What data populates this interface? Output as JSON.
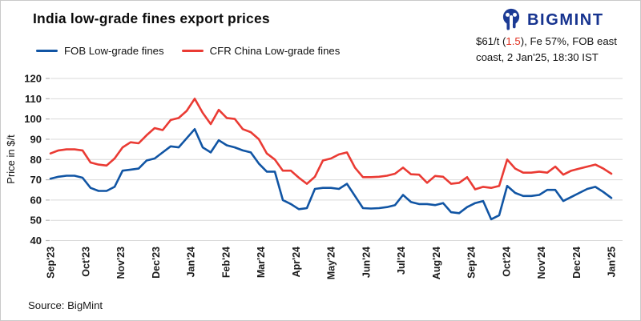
{
  "title": "India low-grade fines export prices",
  "brand": {
    "name": "BIGMINT"
  },
  "subtitle": {
    "line1_pre": "$61/t (",
    "change": "1.5",
    "line1_post": "), Fe 57%, FOB east",
    "line2": "coast, 2 Jan'25, 18:30 IST"
  },
  "legend": {
    "items": [
      {
        "label": "FOB Low-grade fines",
        "color": "#1155a4"
      },
      {
        "label": "CFR China Low-grade fines",
        "color": "#ea3b34"
      }
    ]
  },
  "source": "Source: BigMint",
  "chart_data": {
    "type": "line",
    "title": "India low-grade fines export prices",
    "ylabel": "Price in $/t",
    "ylim": [
      40,
      120
    ],
    "ytick_step": 10,
    "yticks": [
      40,
      50,
      60,
      70,
      80,
      90,
      100,
      110,
      120
    ],
    "grid": "horizontal",
    "legend_position": "top-left",
    "categories": [
      "Sep'23",
      "Oct'23",
      "Nov'23",
      "Dec'23",
      "Jan'24",
      "Feb'24",
      "Mar'24",
      "Apr'24",
      "May'24",
      "Jun'24",
      "Jul'24",
      "Aug'24",
      "Sep'24",
      "Oct'24",
      "Nov'24",
      "Dec'24",
      "Jan'25"
    ],
    "x_note": "weekly observations from Sep'23 to 2 Jan'25; month tick at each label",
    "series": [
      {
        "name": "FOB Low-grade fines",
        "color": "#1155a4",
        "values": [
          70.5,
          71.5,
          72,
          72,
          71,
          66,
          64.5,
          64.5,
          66.5,
          74.5,
          75,
          75.5,
          79.5,
          80.5,
          83.5,
          86.5,
          86,
          90.5,
          95,
          86,
          83.5,
          89.5,
          87,
          86,
          84.5,
          83.5,
          78,
          74,
          74,
          60,
          58,
          55.5,
          56,
          65.5,
          66,
          66,
          65.5,
          68,
          62,
          56,
          55.8,
          56,
          56.5,
          57.5,
          62.5,
          59,
          58,
          58,
          57.5,
          58.5,
          54,
          53.5,
          56.5,
          58.5,
          59.5,
          50.5,
          52.5,
          67,
          63.5,
          62,
          62,
          62.5,
          65,
          65,
          59.5,
          61.5,
          63.5,
          65.5,
          66.5,
          64,
          61
        ]
      },
      {
        "name": "CFR China Low-grade fines",
        "color": "#ea3b34",
        "values": [
          83,
          84.5,
          85,
          85,
          84.5,
          78.5,
          77.5,
          77,
          80.5,
          86,
          88.5,
          88,
          92,
          95.5,
          94.5,
          99.5,
          100.5,
          104,
          110,
          103,
          97.5,
          104.5,
          100.5,
          100,
          95,
          93.5,
          90,
          83,
          80,
          74.5,
          74.5,
          71,
          68,
          71.5,
          79.5,
          80.5,
          82.5,
          83.5,
          76,
          71.3,
          71.3,
          71.5,
          72,
          73,
          76,
          72.7,
          72.5,
          68.5,
          71.9,
          71.5,
          68,
          68.5,
          71.3,
          65.3,
          66.5,
          66,
          67,
          80,
          75.5,
          73.5,
          73.5,
          74,
          73.5,
          76.5,
          72.5,
          74.5,
          75.5,
          76.5,
          77.5,
          75.5,
          73
        ]
      }
    ]
  }
}
